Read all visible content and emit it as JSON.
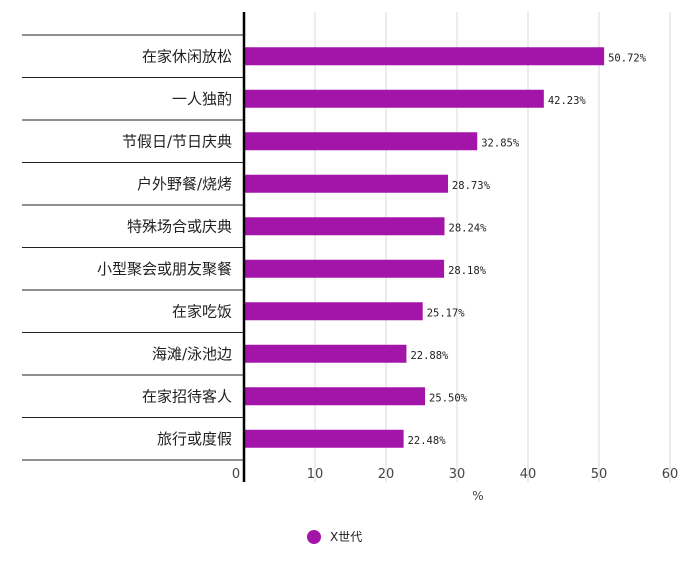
{
  "chart_data": {
    "type": "bar",
    "orientation": "horizontal",
    "categories": [
      "在家休闲放松",
      "一人独酌",
      "节假日/节日庆典",
      "户外野餐/烧烤",
      "特殊场合或庆典",
      "小型聚会或朋友聚餐",
      "在家吃饭",
      "海滩/泳池边",
      "在家招待客人",
      "旅行或度假"
    ],
    "series": [
      {
        "name": "X世代",
        "values": [
          50.72,
          42.23,
          32.85,
          28.73,
          28.24,
          28.18,
          25.17,
          22.88,
          25.5,
          22.48
        ],
        "labels": [
          "50.72%",
          "42.23%",
          "32.85%",
          "28.73%",
          "28.24%",
          "28.18%",
          "25.17%",
          "22.88%",
          "25.50%",
          "22.48%"
        ]
      }
    ],
    "xlim": [
      0,
      60
    ],
    "ticks": [
      "0",
      "10",
      "20",
      "30",
      "40",
      "50",
      "60"
    ],
    "xlabel": "%",
    "grid": true,
    "legend_position": "bottom-center",
    "colors": {
      "bar": "#a315a8",
      "grid": "#d8d8d8",
      "row_line": "#222222",
      "axis": "#000000"
    }
  }
}
